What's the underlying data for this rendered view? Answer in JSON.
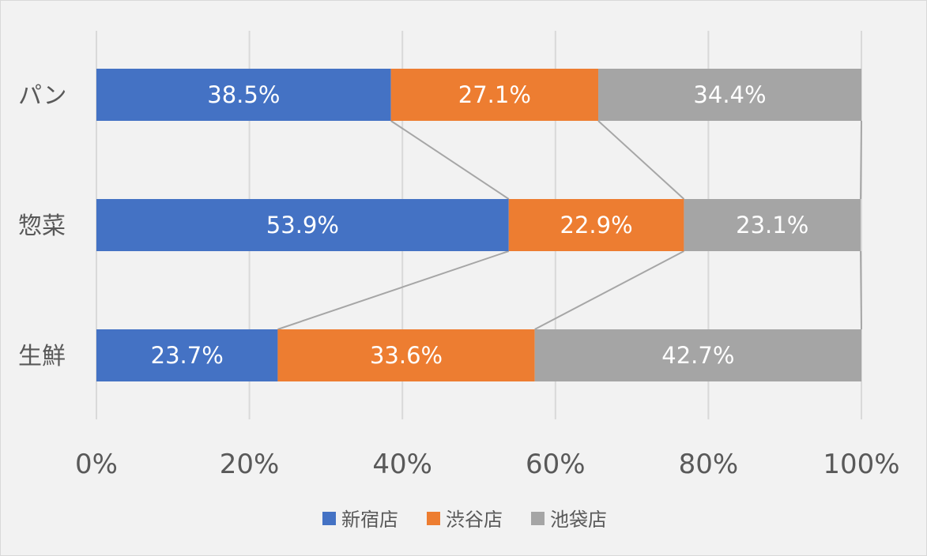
{
  "chart_data": {
    "type": "bar",
    "orientation": "horizontal",
    "stacked": "percent",
    "categories": [
      "パン",
      "惣菜",
      "生鮮"
    ],
    "series": [
      {
        "name": "新宿店",
        "color": "#4472c4",
        "values": [
          38.5,
          53.9,
          23.7
        ],
        "labels": [
          "38.5%",
          "53.9%",
          "23.7%"
        ]
      },
      {
        "name": "渋谷店",
        "color": "#ed7d31",
        "values": [
          27.1,
          22.9,
          33.6
        ],
        "labels": [
          "27.1%",
          "22.9%",
          "33.6%"
        ]
      },
      {
        "name": "池袋店",
        "color": "#a5a5a5",
        "values": [
          34.4,
          23.1,
          42.7
        ],
        "labels": [
          "34.4%",
          "23.1%",
          "42.7%"
        ]
      }
    ],
    "x_ticks": [
      "0%",
      "20%",
      "40%",
      "60%",
      "80%",
      "100%"
    ],
    "xlim": [
      0,
      100
    ],
    "grid": true,
    "series_lines": true,
    "legend_position": "bottom"
  }
}
